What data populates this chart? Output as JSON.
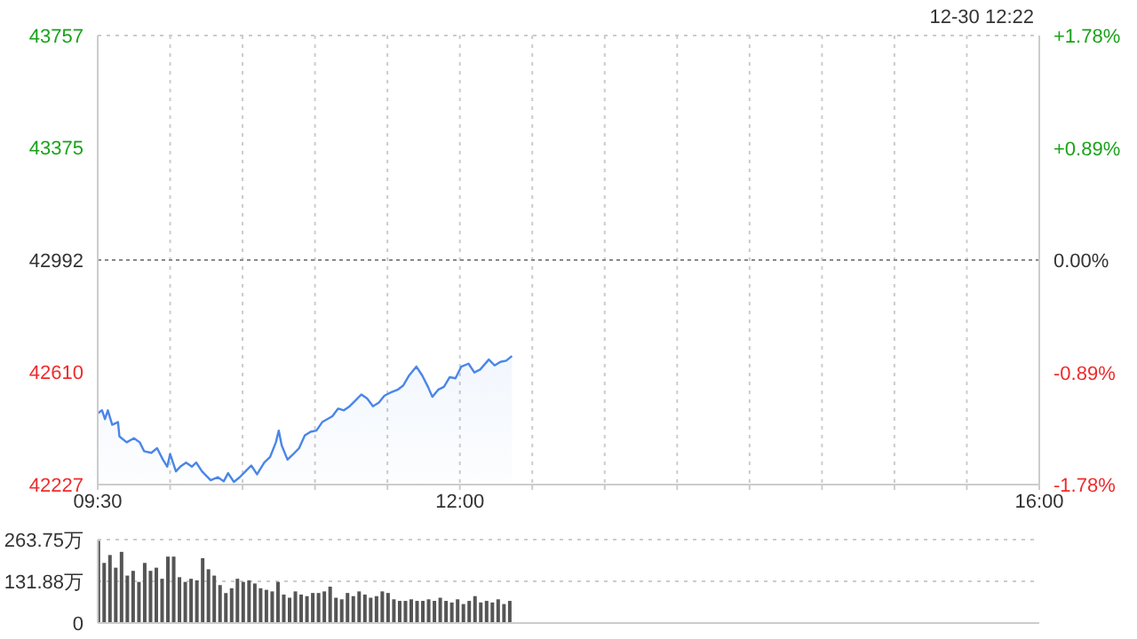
{
  "chart_data": [
    {
      "type": "area",
      "subtitle": "12-30 12:22",
      "x": [
        9.5,
        9.53,
        9.55,
        9.57,
        9.6,
        9.64,
        9.65,
        9.7,
        9.75,
        9.79,
        9.82,
        9.87,
        9.91,
        9.95,
        9.98,
        10,
        10.04,
        10.07,
        10.11,
        10.15,
        10.18,
        10.22,
        10.28,
        10.33,
        10.37,
        10.4,
        10.44,
        10.48,
        10.52,
        10.56,
        10.6,
        10.65,
        10.69,
        10.73,
        10.75,
        10.77,
        10.81,
        10.85,
        10.89,
        10.93,
        10.97,
        11.01,
        11.05,
        11.12,
        11.16,
        11.2,
        11.24,
        11.28,
        11.32,
        11.36,
        11.4,
        11.44,
        11.48,
        11.52,
        11.57,
        11.61,
        11.65,
        11.7,
        11.74,
        11.78,
        11.81,
        11.85,
        11.89,
        11.93,
        11.97,
        12.01,
        12.06,
        12.1,
        12.14,
        12.2,
        12.24,
        12.28,
        12.32,
        12.36
      ],
      "series": [
        {
          "color": "#4a86e8",
          "values": [
            42470,
            42480,
            42450,
            42480,
            42431,
            42440,
            42391,
            42371,
            42385,
            42371,
            42341,
            42335,
            42351,
            42312,
            42288,
            42331,
            42272,
            42288,
            42302,
            42288,
            42302,
            42272,
            42242,
            42252,
            42238,
            42266,
            42236,
            42252,
            42272,
            42292,
            42262,
            42302,
            42321,
            42371,
            42411,
            42361,
            42312,
            42331,
            42351,
            42395,
            42407,
            42411,
            42440,
            42460,
            42486,
            42480,
            42494,
            42514,
            42534,
            42520,
            42494,
            42506,
            42530,
            42540,
            42550,
            42565,
            42599,
            42629,
            42599,
            42560,
            42526,
            42550,
            42560,
            42593,
            42589,
            42629,
            42639,
            42609,
            42619,
            42653,
            42633,
            42645,
            42649,
            42665
          ]
        }
      ],
      "xlim": [
        9.5,
        16
      ],
      "xticks": [
        {
          "value": 9.5,
          "label": "09:30"
        },
        {
          "value": 10,
          "label": null
        },
        {
          "value": 10.5,
          "label": null
        },
        {
          "value": 11,
          "label": null
        },
        {
          "value": 11.5,
          "label": null
        },
        {
          "value": 12,
          "label": "12:00"
        },
        {
          "value": 12.5,
          "label": null
        },
        {
          "value": 13,
          "label": null
        },
        {
          "value": 13.5,
          "label": null
        },
        {
          "value": 14,
          "label": null
        },
        {
          "value": 14.5,
          "label": null
        },
        {
          "value": 15,
          "label": null
        },
        {
          "value": 15.5,
          "label": null
        },
        {
          "value": 16,
          "label": "16:00"
        }
      ],
      "ylim": [
        42227,
        43757
      ],
      "yticks": [
        42227,
        42610,
        42992,
        43375,
        43757
      ],
      "y2lim": [
        -1.78,
        1.78
      ],
      "y2ticks": [
        {
          "value": -1.78,
          "label": "-1.78%"
        },
        {
          "value": -0.89,
          "label": "-0.89%"
        },
        {
          "value": 0,
          "label": "0.00%"
        },
        {
          "value": 0.89,
          "label": "+0.89%"
        },
        {
          "value": 1.78,
          "label": "+1.78%"
        }
      ],
      "ref_lines": [
        {
          "axis": "y",
          "value": 42992
        }
      ],
      "grid": true
    },
    {
      "type": "bar",
      "color": "#555555",
      "x": [
        9.5,
        9.54,
        9.58,
        9.62,
        9.66,
        9.7,
        9.74,
        9.78,
        9.82,
        9.86,
        9.9,
        9.94,
        9.98,
        10.02,
        10.06,
        10.1,
        10.14,
        10.18,
        10.22,
        10.26,
        10.3,
        10.34,
        10.38,
        10.42,
        10.46,
        10.5,
        10.54,
        10.58,
        10.62,
        10.66,
        10.7,
        10.74,
        10.78,
        10.82,
        10.86,
        10.9,
        10.94,
        10.98,
        11.02,
        11.06,
        11.1,
        11.14,
        11.18,
        11.22,
        11.26,
        11.3,
        11.34,
        11.38,
        11.42,
        11.46,
        11.5,
        11.54,
        11.58,
        11.62,
        11.66,
        11.7,
        11.74,
        11.78,
        11.82,
        11.86,
        11.9,
        11.94,
        11.98,
        12.02,
        12.06,
        12.1,
        12.14,
        12.18,
        12.22,
        12.26,
        12.3,
        12.34
      ],
      "values": [
        260,
        190,
        215,
        175,
        225,
        150,
        165,
        130,
        190,
        165,
        175,
        140,
        210,
        210,
        145,
        130,
        140,
        135,
        205,
        170,
        150,
        120,
        95,
        110,
        140,
        130,
        135,
        125,
        110,
        105,
        100,
        130,
        90,
        80,
        100,
        90,
        85,
        95,
        95,
        100,
        115,
        80,
        75,
        95,
        85,
        100,
        90,
        80,
        85,
        100,
        95,
        75,
        70,
        70,
        75,
        70,
        70,
        75,
        70,
        80,
        70,
        65,
        75,
        60,
        70,
        85,
        65,
        70,
        65,
        75,
        60,
        70
      ],
      "xlim": [
        9.5,
        16
      ],
      "ylim": [
        0,
        263.75
      ],
      "yticks": [
        0,
        {
          "value": 131.88,
          "label": "131.88万"
        },
        {
          "value": 263.75,
          "label": "263.75万"
        }
      ],
      "tick_labels": "y",
      "grid": "y"
    }
  ]
}
